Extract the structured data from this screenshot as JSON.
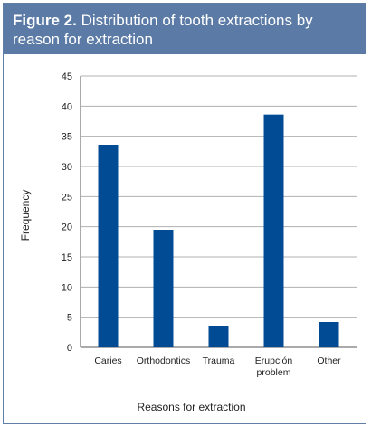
{
  "figure": {
    "label": "Figure 2.",
    "caption": "Distribution of tooth extractions by reason for extraction"
  },
  "colors": {
    "bar": "#004b93",
    "header_bg": "#5b7aa6",
    "grid": "#b0b0b0"
  },
  "chart_data": {
    "type": "bar",
    "title": "Distribution of tooth extractions by reason for extraction",
    "xlabel": "Reasons for extraction",
    "ylabel": "Frequency",
    "categories": [
      [
        "Caries"
      ],
      [
        "Orthodontics"
      ],
      [
        "Trauma"
      ],
      [
        "Erupción",
        "problem"
      ],
      [
        "Other"
      ]
    ],
    "values": [
      33.6,
      19.5,
      3.6,
      38.6,
      4.2
    ],
    "ylim": [
      0,
      45
    ],
    "yticks": [
      0,
      5,
      10,
      15,
      20,
      25,
      30,
      35,
      40,
      45
    ],
    "grid": true,
    "legend": "none"
  }
}
